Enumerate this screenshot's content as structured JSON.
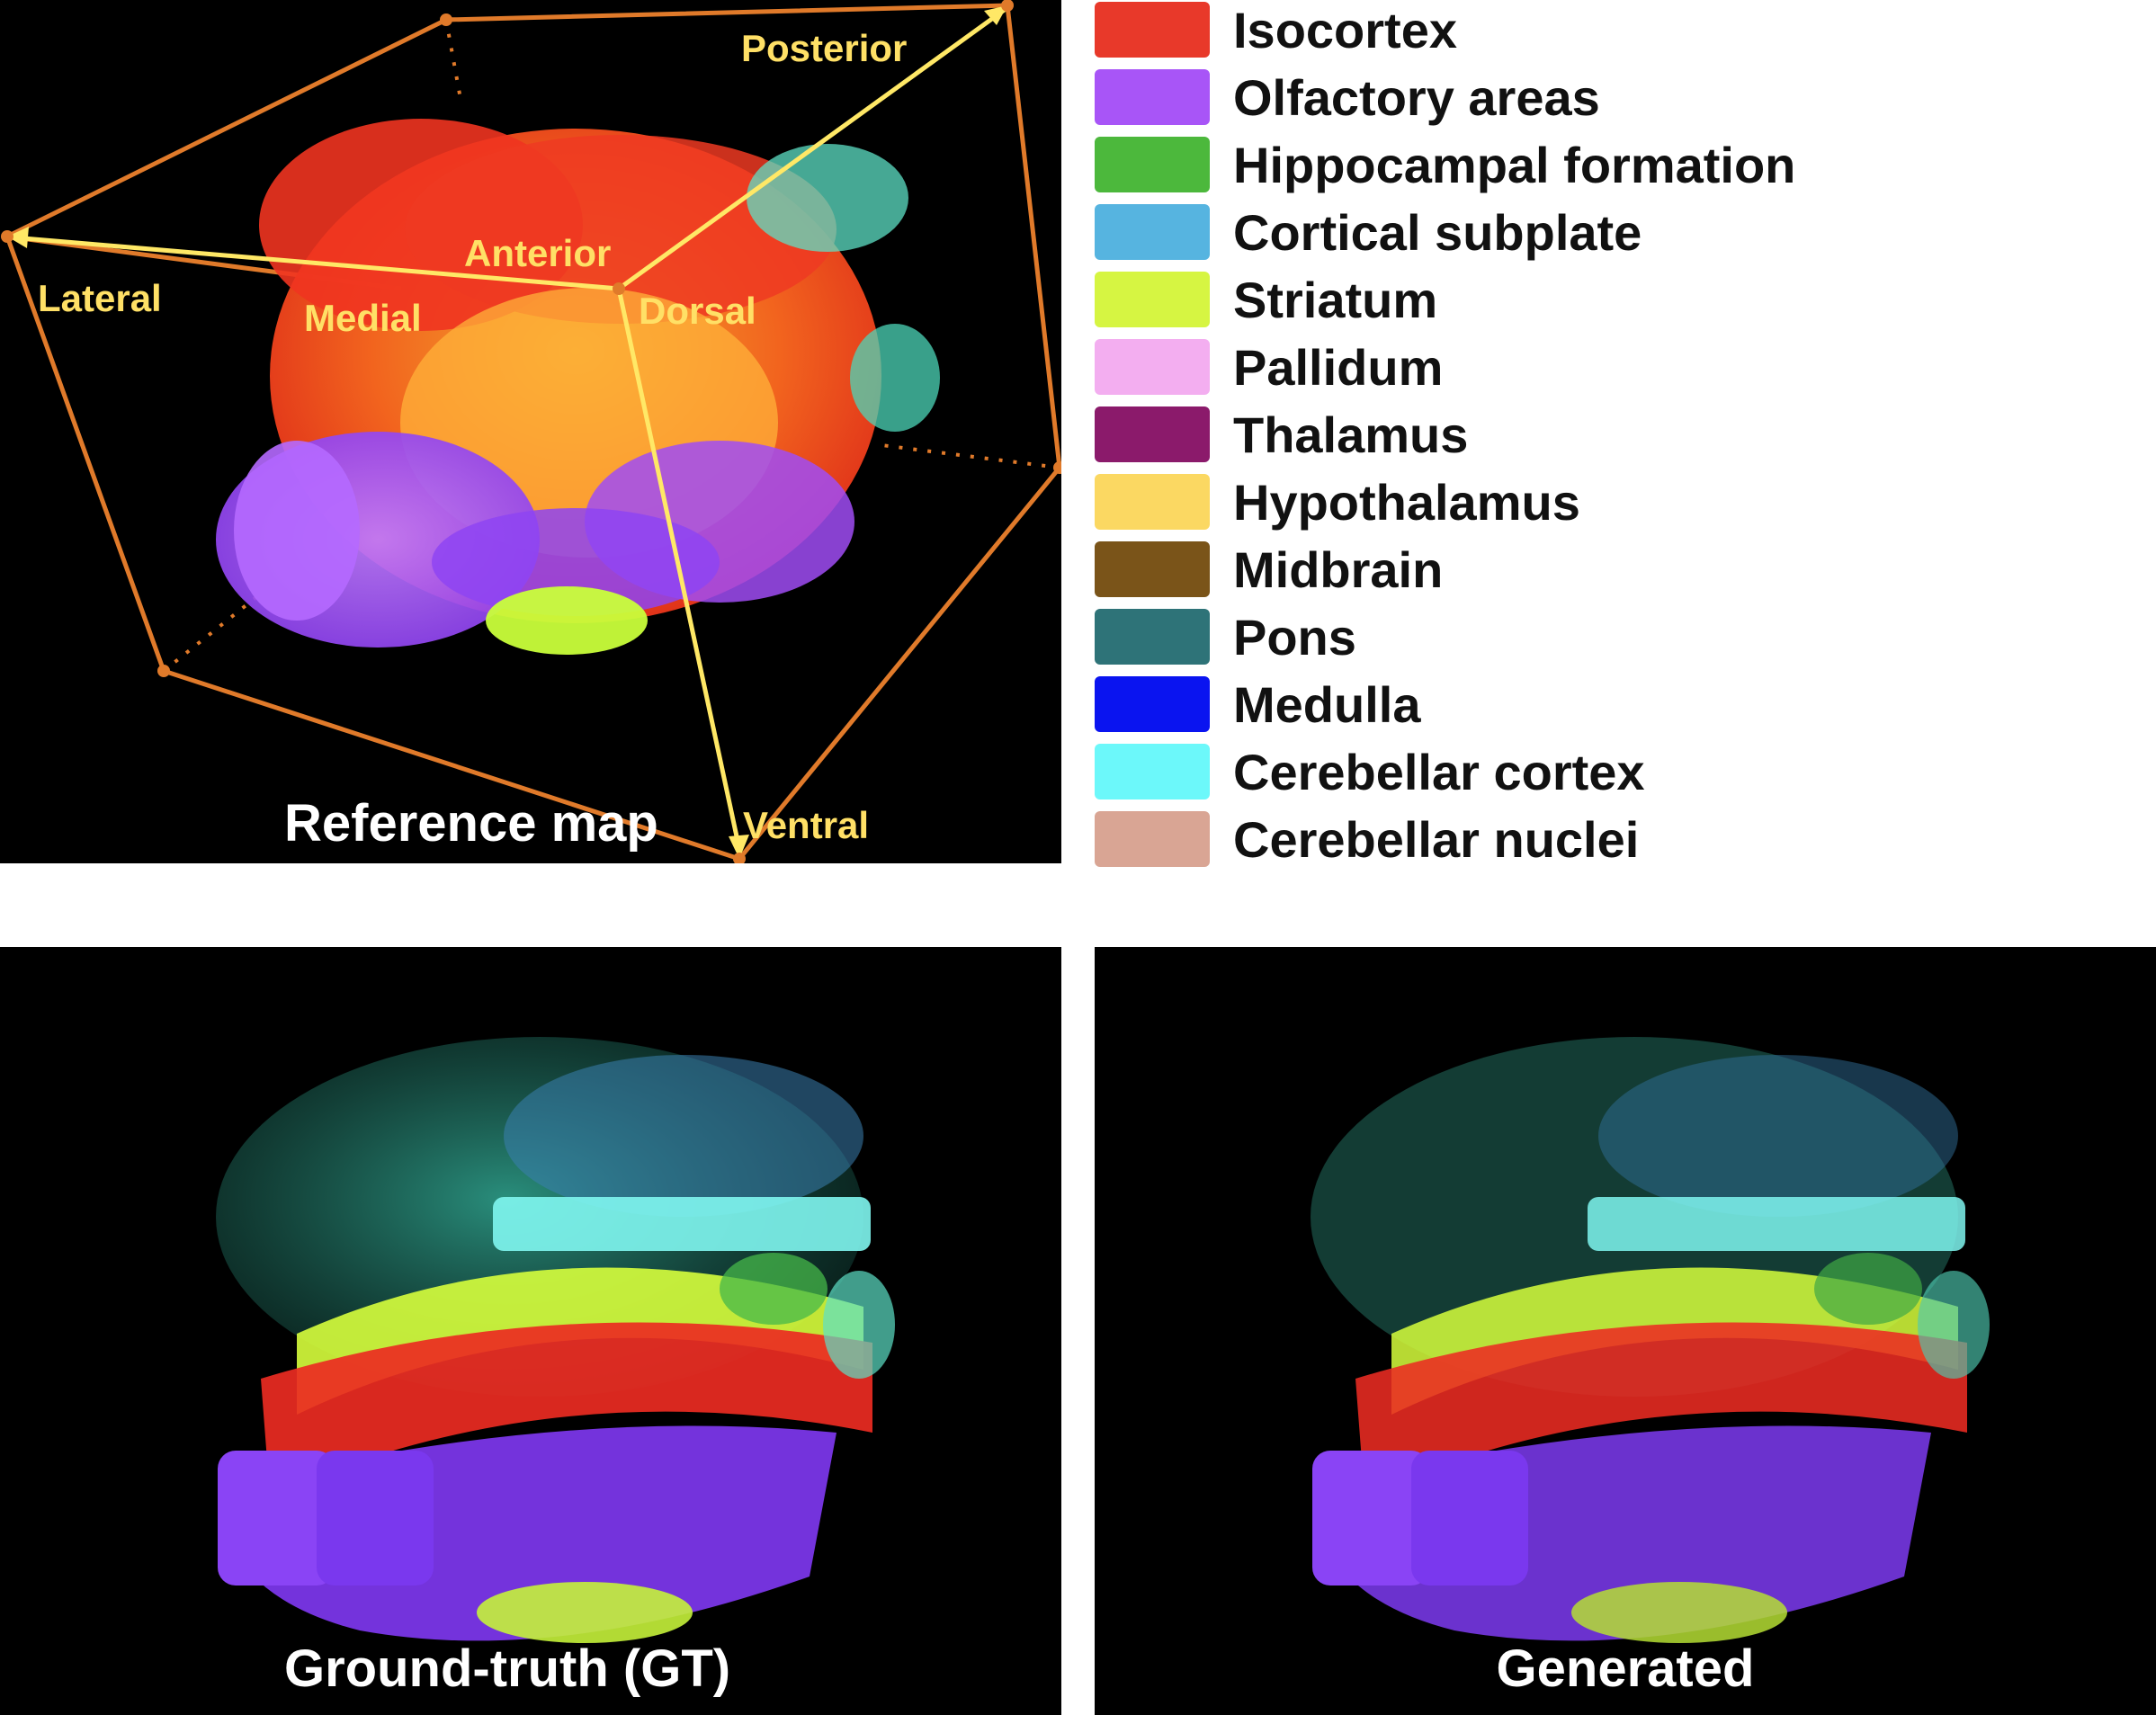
{
  "panels": {
    "reference": {
      "title": "Reference map",
      "axes": {
        "posterior": "Posterior",
        "anterior": "Anterior",
        "lateral": "Lateral",
        "medial": "Medial",
        "dorsal": "Dorsal",
        "ventral": "Ventral"
      }
    },
    "ground_truth": {
      "title": "Ground-truth (GT)"
    },
    "generated": {
      "title": "Generated"
    }
  },
  "legend": {
    "items": [
      {
        "label": "Isocortex",
        "color": "#e8392a"
      },
      {
        "label": "Olfactory areas",
        "color": "#a855f7"
      },
      {
        "label": "Hippocampal formation",
        "color": "#4cb83c"
      },
      {
        "label": "Cortical subplate",
        "color": "#56b4e0"
      },
      {
        "label": "Striatum",
        "color": "#d6f542"
      },
      {
        "label": "Pallidum",
        "color": "#f3aef0"
      },
      {
        "label": "Thalamus",
        "color": "#8b1a6b"
      },
      {
        "label": "Hypothalamus",
        "color": "#fbd862"
      },
      {
        "label": "Midbrain",
        "color": "#7a5419"
      },
      {
        "label": "Pons",
        "color": "#2e7378"
      },
      {
        "label": "Medulla",
        "color": "#0a14f0"
      },
      {
        "label": "Cerebellar cortex",
        "color": "#6cf8fa"
      },
      {
        "label": "Cerebellar nuclei",
        "color": "#d9a594"
      }
    ]
  },
  "colors": {
    "box_edge": "#e07a2a",
    "axis_arrow": "#ffe866",
    "panel_background": "#000000"
  }
}
